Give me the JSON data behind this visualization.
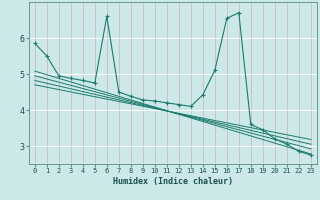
{
  "xlabel": "Humidex (Indice chaleur)",
  "bg_color": "#cce8e8",
  "grid_color": "#b0d8d8",
  "line_color": "#1a7a6e",
  "xlim": [
    -0.5,
    23.5
  ],
  "ylim": [
    2.5,
    7.0
  ],
  "yticks": [
    3,
    4,
    5,
    6
  ],
  "xticks": [
    0,
    1,
    2,
    3,
    4,
    5,
    6,
    7,
    8,
    9,
    10,
    11,
    12,
    13,
    14,
    15,
    16,
    17,
    18,
    19,
    20,
    21,
    22,
    23
  ],
  "curve_x": [
    0,
    1,
    2,
    3,
    4,
    5,
    6,
    7,
    8,
    9,
    10,
    11,
    12,
    13,
    14,
    15,
    16,
    17,
    18,
    19,
    20,
    21,
    22,
    23
  ],
  "curve_y": [
    5.85,
    5.5,
    4.95,
    4.88,
    4.82,
    4.75,
    6.6,
    4.5,
    4.38,
    4.28,
    4.25,
    4.2,
    4.15,
    4.1,
    4.42,
    5.1,
    6.55,
    6.7,
    3.6,
    3.45,
    3.2,
    3.05,
    2.85,
    2.75
  ],
  "trend_lines": [
    {
      "x": [
        0,
        23
      ],
      "y": [
        5.08,
        2.78
      ]
    },
    {
      "x": [
        0,
        23
      ],
      "y": [
        4.95,
        2.92
      ]
    },
    {
      "x": [
        0,
        23
      ],
      "y": [
        4.82,
        3.05
      ]
    },
    {
      "x": [
        0,
        23
      ],
      "y": [
        4.7,
        3.18
      ]
    }
  ]
}
